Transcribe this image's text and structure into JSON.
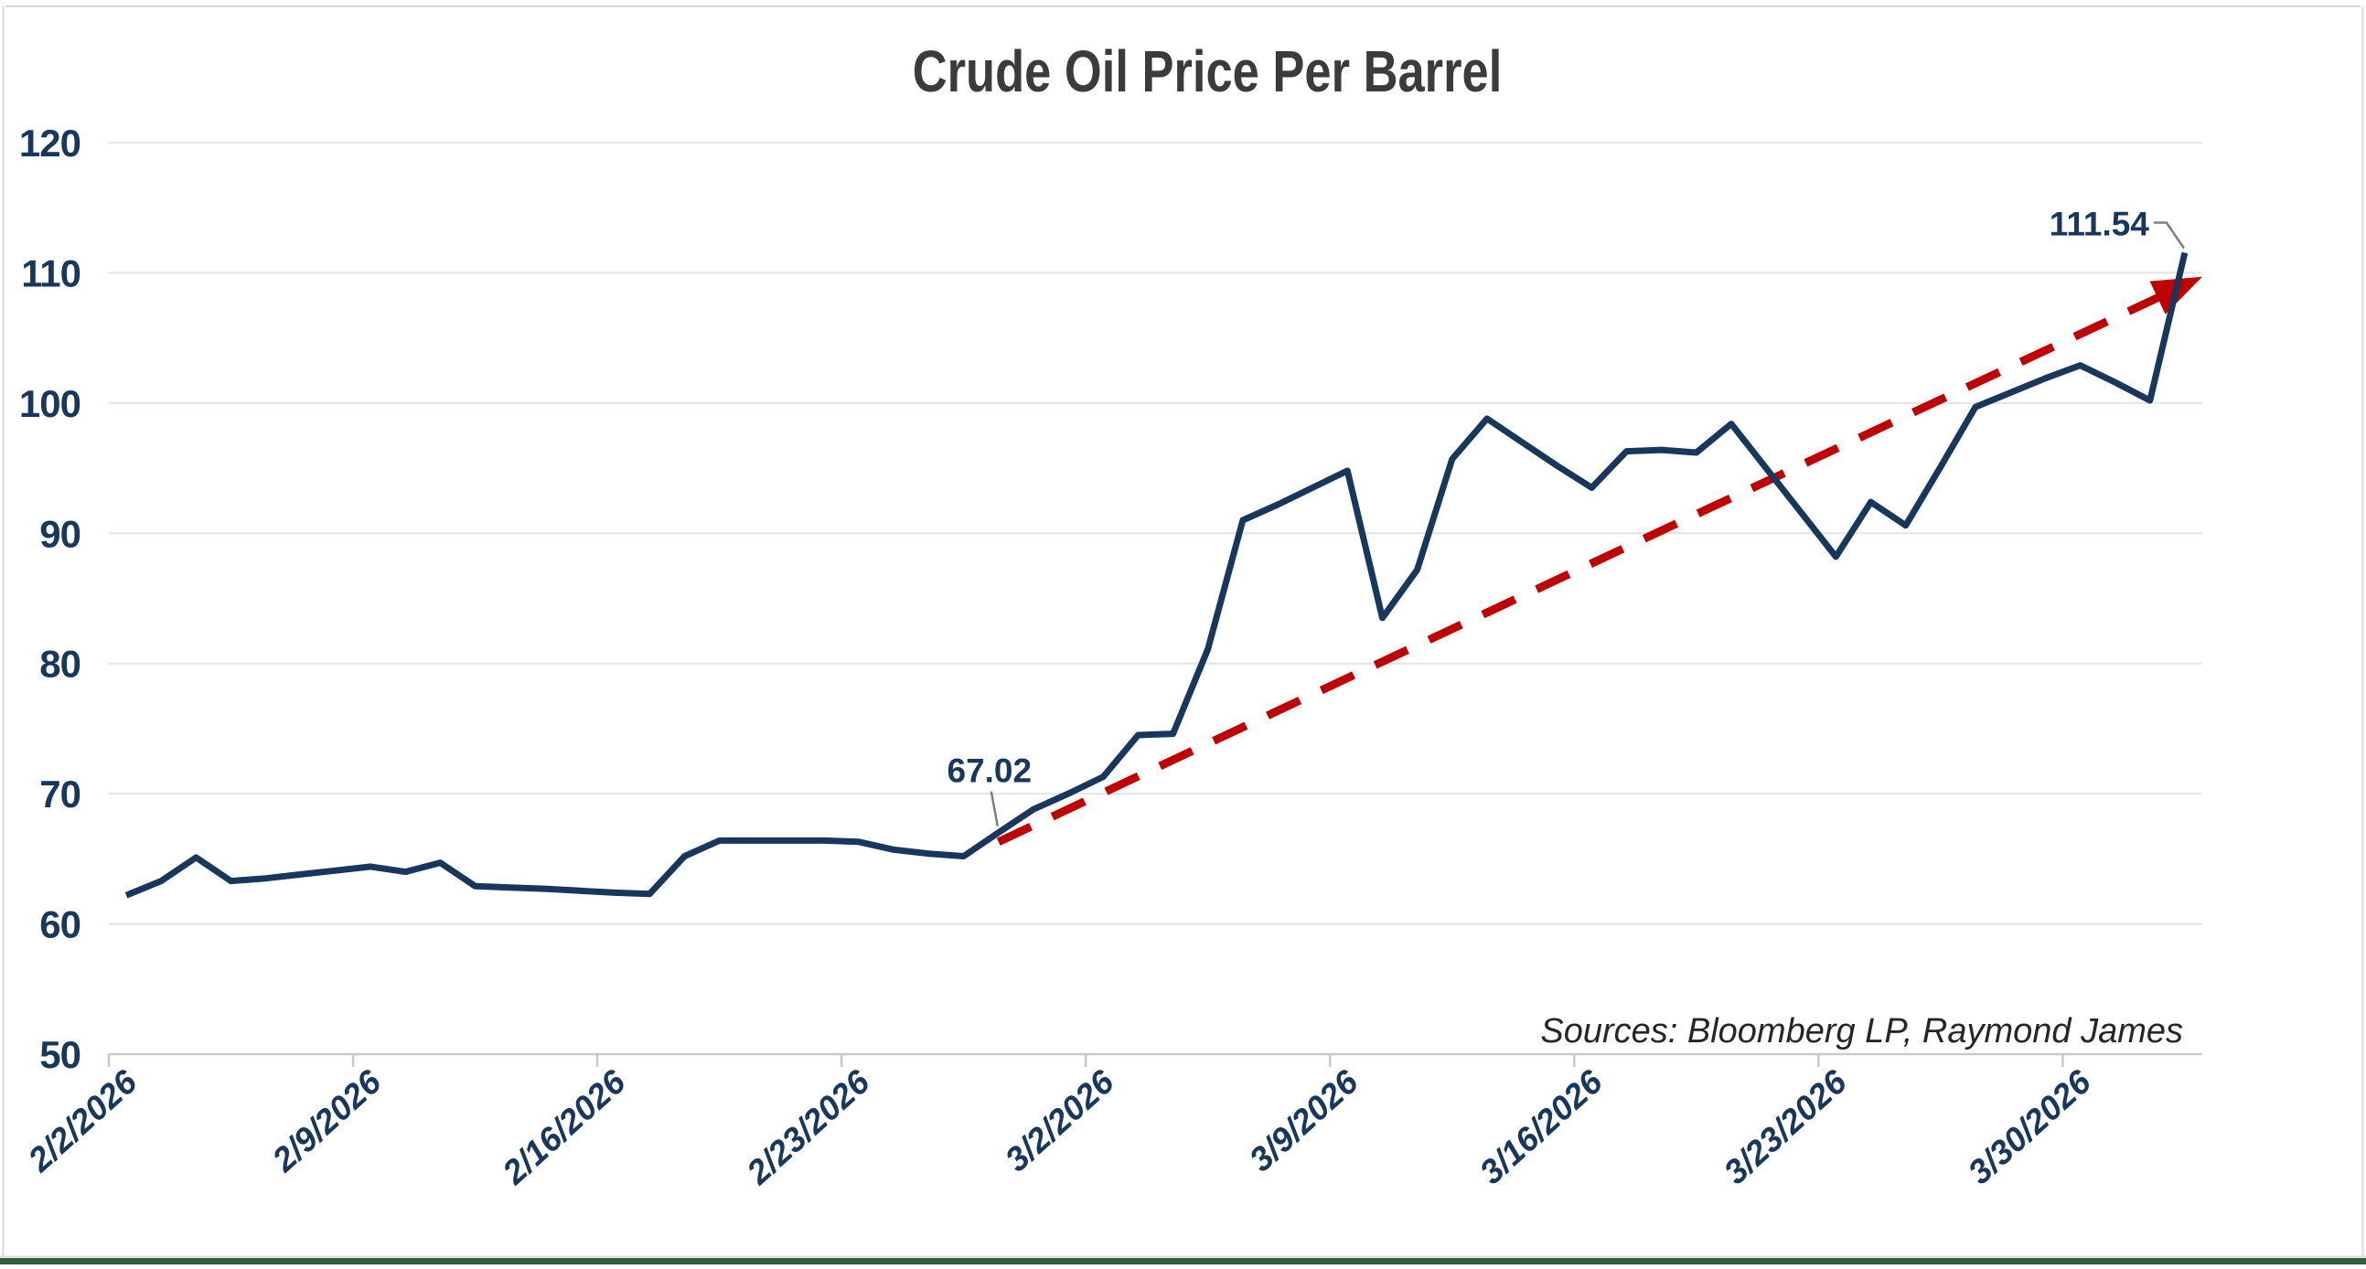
{
  "title": "Crude Oil Price Per Barrel",
  "source_note": "Sources: Bloomberg LP, Raymond James",
  "colors": {
    "line": "#17375E",
    "trend": "#C00000",
    "grid": "#E4E4E4",
    "axis": "#C9C9C9",
    "labels": "#17375E",
    "title": "#3B3B3B",
    "callout": "#7F7F7F",
    "source_text": "#262626",
    "frame": "#D9D9D9",
    "bottom_bar": "#2F5F3A"
  },
  "chart_data": {
    "type": "line",
    "title": "Crude Oil Price Per Barrel",
    "xlabel": "",
    "ylabel": "",
    "ylim": [
      50,
      120
    ],
    "y_ticks": [
      50,
      60,
      70,
      80,
      90,
      100,
      110,
      120
    ],
    "grid": "horizontal",
    "legend": "none",
    "x_tick_labels": [
      "2/2/2026",
      "2/9/2026",
      "2/16/2026",
      "2/23/2026",
      "3/2/2026",
      "3/9/2026",
      "3/16/2026",
      "3/23/2026",
      "3/30/2026"
    ],
    "x": [
      "2/2/2026",
      "2/3/2026",
      "2/4/2026",
      "2/5/2026",
      "2/6/2026",
      "2/7/2026",
      "2/8/2026",
      "2/9/2026",
      "2/10/2026",
      "2/11/2026",
      "2/12/2026",
      "2/13/2026",
      "2/14/2026",
      "2/15/2026",
      "2/16/2026",
      "2/17/2026",
      "2/18/2026",
      "2/19/2026",
      "2/20/2026",
      "2/21/2026",
      "2/22/2026",
      "2/23/2026",
      "2/24/2026",
      "2/25/2026",
      "2/26/2026",
      "2/27/2026",
      "2/28/2026",
      "3/1/2026",
      "3/2/2026",
      "3/3/2026",
      "3/4/2026",
      "3/5/2026",
      "3/6/2026",
      "3/7/2026",
      "3/8/2026",
      "3/9/2026",
      "3/10/2026",
      "3/11/2026",
      "3/12/2026",
      "3/13/2026",
      "3/14/2026",
      "3/15/2026",
      "3/16/2026",
      "3/17/2026",
      "3/18/2026",
      "3/19/2026",
      "3/20/2026",
      "3/21/2026",
      "3/22/2026",
      "3/23/2026",
      "3/24/2026",
      "3/25/2026",
      "3/26/2026",
      "3/27/2026",
      "3/28/2026",
      "3/29/2026",
      "3/30/2026",
      "3/31/2026",
      "4/1/2026",
      "4/2/2026"
    ],
    "values": [
      62.2,
      63.3,
      65.1,
      63.3,
      63.5,
      63.8,
      64.1,
      64.4,
      64.0,
      64.7,
      62.9,
      62.8,
      62.7,
      62.55,
      62.4,
      62.3,
      65.2,
      66.4,
      66.4,
      66.4,
      66.4,
      66.3,
      65.7,
      65.4,
      65.2,
      67.02,
      68.8,
      70.0,
      71.3,
      74.5,
      74.6,
      81.1,
      91.0,
      92.2,
      93.5,
      94.8,
      83.5,
      87.2,
      95.7,
      98.8,
      97.0,
      95.2,
      93.5,
      96.3,
      96.4,
      96.2,
      98.4,
      95.0,
      91.6,
      88.2,
      92.4,
      90.6,
      95.1,
      99.7,
      100.8,
      101.9,
      102.9,
      101.6,
      100.2,
      111.54
    ],
    "annotations": [
      {
        "label": "67.02",
        "value": 67.02,
        "date": "2/27/2026",
        "index": 25
      },
      {
        "label": "111.54",
        "value": 111.54,
        "date": "4/2/2026",
        "index": 59
      }
    ],
    "trendline": {
      "style": "dashed",
      "arrow": true,
      "color": "#C00000",
      "start_index": 25,
      "start_value": 66.3,
      "end_index": 59.5,
      "end_value": 109.7
    }
  }
}
